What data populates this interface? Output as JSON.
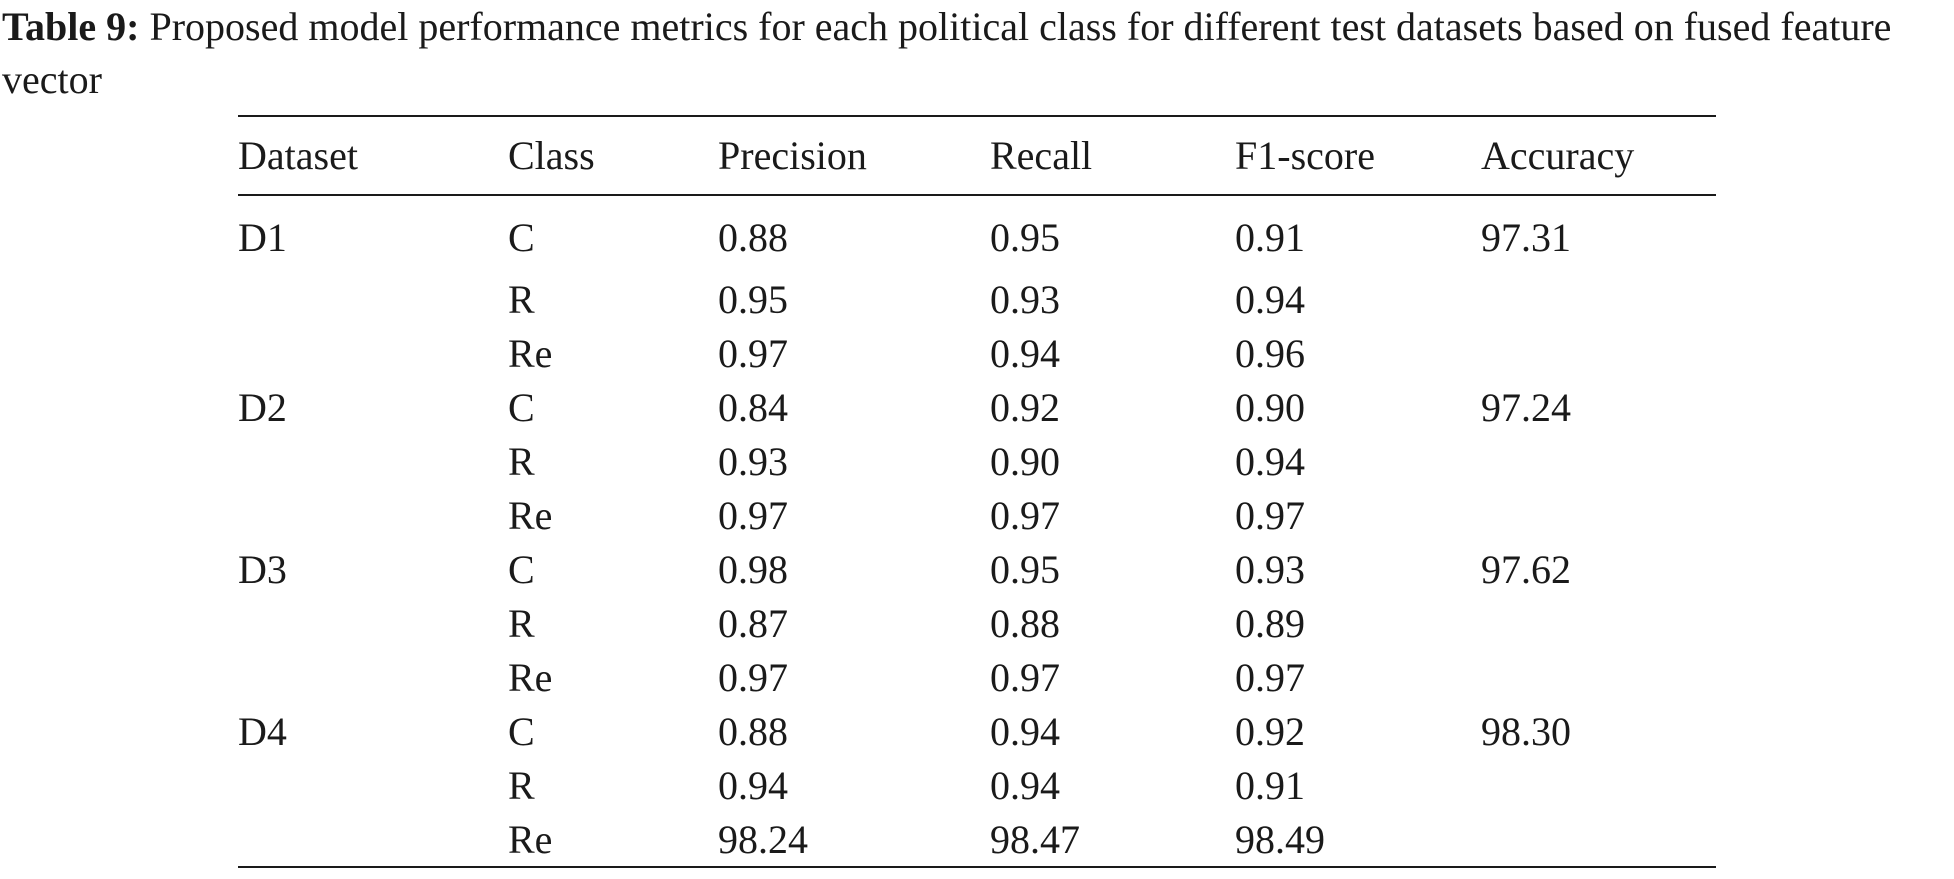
{
  "caption": {
    "label": "Table 9:",
    "text": "Proposed model performance metrics for each political class for different test datasets based on fused feature vector"
  },
  "table": {
    "headers": [
      "Dataset",
      "Class",
      "Precision",
      "Recall",
      "F1-score",
      "Accuracy"
    ],
    "rows": [
      {
        "dataset": "D1",
        "class": "C",
        "precision": "0.88",
        "recall": "0.95",
        "f1": "0.91",
        "accuracy": "97.31"
      },
      {
        "dataset": "",
        "class": "R",
        "precision": "0.95",
        "recall": "0.93",
        "f1": "0.94",
        "accuracy": ""
      },
      {
        "dataset": "",
        "class": "Re",
        "precision": "0.97",
        "recall": "0.94",
        "f1": "0.96",
        "accuracy": ""
      },
      {
        "dataset": "D2",
        "class": "C",
        "precision": "0.84",
        "recall": "0.92",
        "f1": "0.90",
        "accuracy": "97.24"
      },
      {
        "dataset": "",
        "class": "R",
        "precision": "0.93",
        "recall": "0.90",
        "f1": "0.94",
        "accuracy": ""
      },
      {
        "dataset": "",
        "class": "Re",
        "precision": "0.97",
        "recall": "0.97",
        "f1": "0.97",
        "accuracy": ""
      },
      {
        "dataset": "D3",
        "class": "C",
        "precision": "0.98",
        "recall": "0.95",
        "f1": "0.93",
        "accuracy": "97.62"
      },
      {
        "dataset": "",
        "class": "R",
        "precision": "0.87",
        "recall": "0.88",
        "f1": "0.89",
        "accuracy": ""
      },
      {
        "dataset": "",
        "class": "Re",
        "precision": "0.97",
        "recall": "0.97",
        "f1": "0.97",
        "accuracy": ""
      },
      {
        "dataset": "D4",
        "class": "C",
        "precision": "0.88",
        "recall": "0.94",
        "f1": "0.92",
        "accuracy": "98.30"
      },
      {
        "dataset": "",
        "class": "R",
        "precision": "0.94",
        "recall": "0.94",
        "f1": "0.91",
        "accuracy": ""
      },
      {
        "dataset": "",
        "class": "Re",
        "precision": "98.24",
        "recall": "98.47",
        "f1": "98.49",
        "accuracy": ""
      }
    ]
  }
}
